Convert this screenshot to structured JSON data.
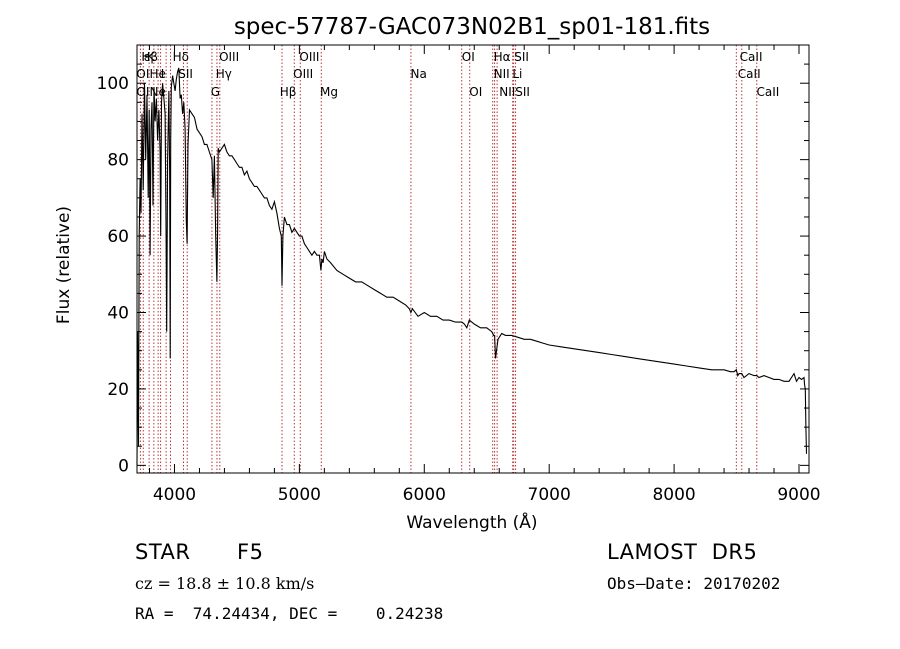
{
  "chart_data": {
    "type": "line",
    "title": "spec-57787-GAC073N02B1_sp01-181.fits",
    "xlabel": "Wavelength (Å)",
    "ylabel": "Flux (relative)",
    "xlim": [
      3700,
      9080
    ],
    "ylim": [
      -2,
      110
    ],
    "x_ticks": [
      4000,
      5000,
      6000,
      7000,
      8000,
      9000
    ],
    "x_tick_labels": [
      "4000",
      "5000",
      "6000",
      "7000",
      "8000",
      "9000"
    ],
    "y_ticks": [
      0,
      20,
      40,
      60,
      80,
      100
    ],
    "y_tick_labels": [
      "0",
      "20",
      "40",
      "60",
      "80",
      "100"
    ],
    "grid": false,
    "series": [
      {
        "color": "#000000",
        "x": [
          3700,
          3705,
          3712,
          3718,
          3725,
          3732,
          3740,
          3750,
          3760,
          3770,
          3780,
          3790,
          3798,
          3805,
          3812,
          3820,
          3828,
          3836,
          3845,
          3855,
          3865,
          3875,
          3885,
          3890,
          3896,
          3905,
          3915,
          3925,
          3933,
          3938,
          3945,
          3955,
          3962,
          3966,
          3970,
          3975,
          3985,
          3995,
          4005,
          4015,
          4025,
          4035,
          4045,
          4055,
          4065,
          4075,
          4085,
          4095,
          4101,
          4108,
          4120,
          4140,
          4160,
          4180,
          4200,
          4220,
          4240,
          4260,
          4280,
          4300,
          4310,
          4320,
          4330,
          4340,
          4345,
          4350,
          4360,
          4380,
          4400,
          4420,
          4440,
          4460,
          4480,
          4500,
          4520,
          4540,
          4560,
          4580,
          4600,
          4620,
          4640,
          4660,
          4680,
          4700,
          4720,
          4740,
          4760,
          4780,
          4800,
          4820,
          4840,
          4855,
          4861,
          4868,
          4880,
          4900,
          4920,
          4940,
          4960,
          4980,
          5000,
          5020,
          5040,
          5060,
          5080,
          5100,
          5120,
          5140,
          5160,
          5172,
          5180,
          5190,
          5200,
          5220,
          5250,
          5300,
          5350,
          5400,
          5450,
          5500,
          5550,
          5600,
          5650,
          5700,
          5750,
          5800,
          5850,
          5880,
          5893,
          5905,
          5950,
          6000,
          6050,
          6100,
          6150,
          6200,
          6250,
          6300,
          6320,
          6340,
          6360,
          6400,
          6450,
          6500,
          6540,
          6556,
          6563,
          6570,
          6590,
          6620,
          6650,
          6700,
          6750,
          6800,
          6850,
          6900,
          6950,
          7000,
          7100,
          7200,
          7300,
          7400,
          7500,
          7600,
          7700,
          7800,
          7900,
          8000,
          8100,
          8200,
          8300,
          8400,
          8450,
          8480,
          8498,
          8510,
          8520,
          8542,
          8560,
          8600,
          8640,
          8662,
          8680,
          8720,
          8760,
          8800,
          8840,
          8880,
          8920,
          8940,
          8960,
          8980,
          9000,
          9020,
          9040,
          9045,
          9050,
          9055,
          9060
        ],
        "y": [
          0,
          35,
          5,
          60,
          75,
          66,
          92,
          72,
          100,
          80,
          97,
          70,
          93,
          55,
          88,
          95,
          68,
          99,
          90,
          96,
          85,
          93,
          82,
          60,
          95,
          100,
          96,
          92,
          60,
          35,
          80,
          98,
          75,
          28,
          85,
          99,
          102,
          100,
          98,
          101,
          103,
          104,
          96,
          97,
          92,
          95,
          88,
          64,
          58,
          84,
          93,
          92,
          91,
          88,
          87,
          86,
          84,
          84,
          82,
          80,
          70,
          81,
          60,
          48,
          61,
          83,
          82,
          83,
          84,
          82,
          81,
          81,
          80,
          79,
          78,
          78,
          76,
          77,
          75,
          74,
          73,
          73,
          72,
          71,
          70,
          70,
          68,
          67,
          69,
          66,
          62,
          60,
          47,
          60,
          65,
          63,
          63,
          61,
          62,
          61,
          60,
          60,
          58,
          57,
          56,
          55,
          56,
          55,
          55,
          51,
          54,
          53,
          56,
          54,
          53,
          51,
          50,
          49,
          48,
          48,
          47,
          46,
          45,
          44,
          44,
          43,
          42,
          41,
          40,
          41,
          39,
          40,
          39,
          39,
          38,
          38,
          37.5,
          37.5,
          37,
          36,
          38,
          37,
          36,
          36,
          35,
          34,
          34,
          28,
          33,
          34.5,
          34,
          34,
          33.5,
          33,
          33,
          32.5,
          32,
          31.5,
          31,
          30.5,
          30,
          29.5,
          29,
          28.5,
          28,
          27.5,
          27,
          26.5,
          26,
          25.5,
          25,
          25,
          24.5,
          24.5,
          25,
          23.5,
          24,
          24,
          23,
          24,
          23.5,
          23.5,
          23,
          23.5,
          23,
          22.5,
          22.5,
          22,
          22,
          23,
          24,
          22,
          23,
          22.5,
          23,
          21,
          20,
          10,
          3
        ]
      }
    ],
    "lines": [
      {
        "x": 3727,
        "labels": [
          "OII"
        ]
      },
      {
        "x": 3750,
        "labels": [
          "H6"
        ]
      },
      {
        "x": 3797,
        "labels": [
          "Hβ"
        ]
      },
      {
        "x": 3835,
        "labels": [
          "Hη"
        ]
      },
      {
        "x": 3869,
        "labels": [
          "NeIII"
        ]
      },
      {
        "x": 3889,
        "labels": [
          "HeI"
        ]
      },
      {
        "x": 3933,
        "labels": [
          "K"
        ]
      },
      {
        "x": 3968,
        "labels": [
          "H",
          "Hε"
        ]
      },
      {
        "x": 4072,
        "labels": [
          "SII"
        ]
      },
      {
        "x": 4102,
        "labels": [
          "Hδ"
        ]
      },
      {
        "x": 4300,
        "labels": [
          "G"
        ]
      },
      {
        "x": 4340,
        "labels": [
          "Hγ"
        ]
      },
      {
        "x": 4363,
        "labels": [
          "OIII"
        ]
      },
      {
        "x": 4861,
        "labels": [
          "Hβ"
        ]
      },
      {
        "x": 4959,
        "labels": [
          "OIII"
        ]
      },
      {
        "x": 5007,
        "labels": [
          "OIII"
        ]
      },
      {
        "x": 5175,
        "labels": [
          "Mg"
        ]
      },
      {
        "x": 5893,
        "labels": [
          "Na"
        ]
      },
      {
        "x": 6300,
        "labels": [
          "OI"
        ]
      },
      {
        "x": 6364,
        "labels": [
          "OI"
        ]
      },
      {
        "x": 6548,
        "labels": [
          "NII"
        ]
      },
      {
        "x": 6563,
        "labels": [
          "Hα"
        ]
      },
      {
        "x": 6583,
        "labels": [
          "NII"
        ]
      },
      {
        "x": 6708,
        "labels": [
          "Li"
        ]
      },
      {
        "x": 6716,
        "labels": [
          "SII"
        ]
      },
      {
        "x": 6731,
        "labels": [
          "SII"
        ]
      },
      {
        "x": 8498,
        "labels": [
          "CaII"
        ]
      },
      {
        "x": 8542,
        "labels": [
          "CaII"
        ]
      },
      {
        "x": 8662,
        "labels": [
          "CaII"
        ]
      }
    ],
    "line_label_texts": [
      {
        "text": "Hβ",
        "tier": 0,
        "x": 3735
      },
      {
        "text": "ε",
        "tier": 0,
        "x": 3754
      },
      {
        "text": "K",
        "tier": 0,
        "x": 3778
      },
      {
        "text": "Hδ",
        "tier": 0,
        "x": 3985
      },
      {
        "text": "OIII",
        "tier": 0,
        "x": 4357
      },
      {
        "text": "OIII",
        "tier": 0,
        "x": 5000
      },
      {
        "text": "OI",
        "tier": 0,
        "x": 6300
      },
      {
        "text": "Hα",
        "tier": 0,
        "x": 6555
      },
      {
        "text": "SII",
        "tier": 0,
        "x": 6720
      },
      {
        "text": "CaII",
        "tier": 0,
        "x": 8525
      },
      {
        "text": "OI",
        "tier": 1,
        "x": 3695
      },
      {
        "text": "He",
        "tier": 1,
        "x": 3800
      },
      {
        "text": "I",
        "tier": 1,
        "x": 3890
      },
      {
        "text": "SII",
        "tier": 1,
        "x": 4030
      },
      {
        "text": "Hγ",
        "tier": 1,
        "x": 4330
      },
      {
        "text": "OIII",
        "tier": 1,
        "x": 4950
      },
      {
        "text": "Na",
        "tier": 1,
        "x": 5890
      },
      {
        "text": "NII",
        "tier": 1,
        "x": 6555
      },
      {
        "text": "Li",
        "tier": 1,
        "x": 6705
      },
      {
        "text": "CaII",
        "tier": 1,
        "x": 8510
      },
      {
        "text": "OI",
        "tier": 2,
        "x": 3695
      },
      {
        "text": "Ne",
        "tier": 2,
        "x": 3800
      },
      {
        "text": "I",
        "tier": 2,
        "x": 3890
      },
      {
        "text": "G",
        "tier": 2,
        "x": 4290
      },
      {
        "text": "Hβ",
        "tier": 2,
        "x": 4843
      },
      {
        "text": "Mg",
        "tier": 2,
        "x": 5165
      },
      {
        "text": "OI",
        "tier": 2,
        "x": 6360
      },
      {
        "text": "NIISII",
        "tier": 2,
        "x": 6600
      },
      {
        "text": "CaII",
        "tier": 2,
        "x": 8660
      }
    ]
  },
  "info": {
    "object_type": "STAR",
    "subclass": "F5",
    "survey": "LAMOST  DR5",
    "redshift": "cz = 18.8 ± 10.8 km/s",
    "obs_date": "Obs–Date: 20170202",
    "coords": "RA =  74.24434, DEC =    0.24238"
  }
}
